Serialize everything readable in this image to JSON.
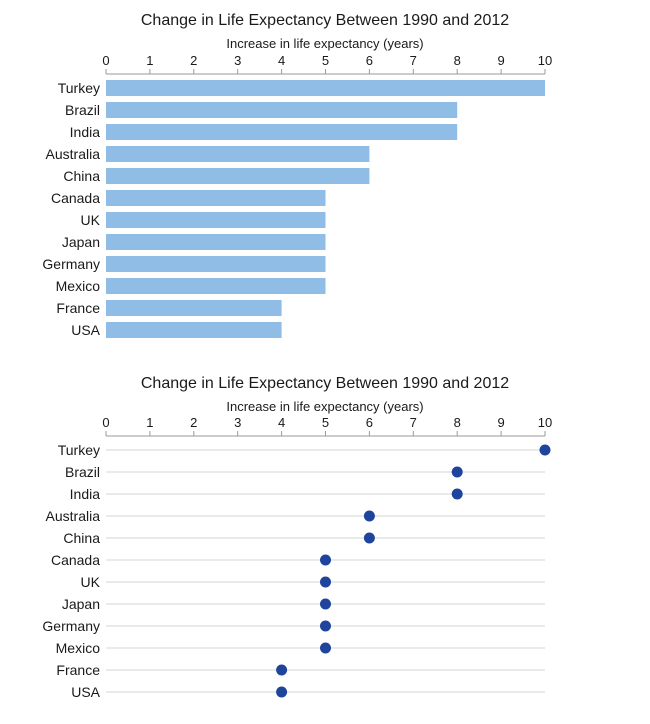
{
  "chart_data": [
    {
      "type": "bar",
      "orientation": "horizontal",
      "title": "Change in Life Expectancy Between 1990 and 2012",
      "xlabel": "Increase in life expectancy (years)",
      "xaxis_position": "top",
      "xlim": [
        0,
        10
      ],
      "xticks": [
        0,
        1,
        2,
        3,
        4,
        5,
        6,
        7,
        8,
        9,
        10
      ],
      "categories": [
        "Turkey",
        "Brazil",
        "India",
        "Australia",
        "China",
        "Canada",
        "UK",
        "Japan",
        "Germany",
        "Mexico",
        "France",
        "USA"
      ],
      "values": [
        10,
        8,
        8,
        6,
        6,
        5,
        5,
        5,
        5,
        5,
        4,
        4
      ],
      "color": "#8fbde6",
      "grid": false
    },
    {
      "type": "scatter",
      "style": "dot-plot",
      "title": "Change in Life Expectancy Between 1990 and 2012",
      "xlabel": "Increase in life expectancy (years)",
      "xaxis_position": "top",
      "xlim": [
        0,
        10
      ],
      "xticks": [
        0,
        1,
        2,
        3,
        4,
        5,
        6,
        7,
        8,
        9,
        10
      ],
      "categories": [
        "Turkey",
        "Brazil",
        "India",
        "Australia",
        "China",
        "Canada",
        "UK",
        "Japan",
        "Germany",
        "Mexico",
        "France",
        "USA"
      ],
      "values": [
        10,
        8,
        8,
        6,
        6,
        5,
        5,
        5,
        5,
        5,
        4,
        4
      ],
      "color": "#1f449c",
      "guide_color": "#d4d4d4",
      "grid": false
    }
  ]
}
